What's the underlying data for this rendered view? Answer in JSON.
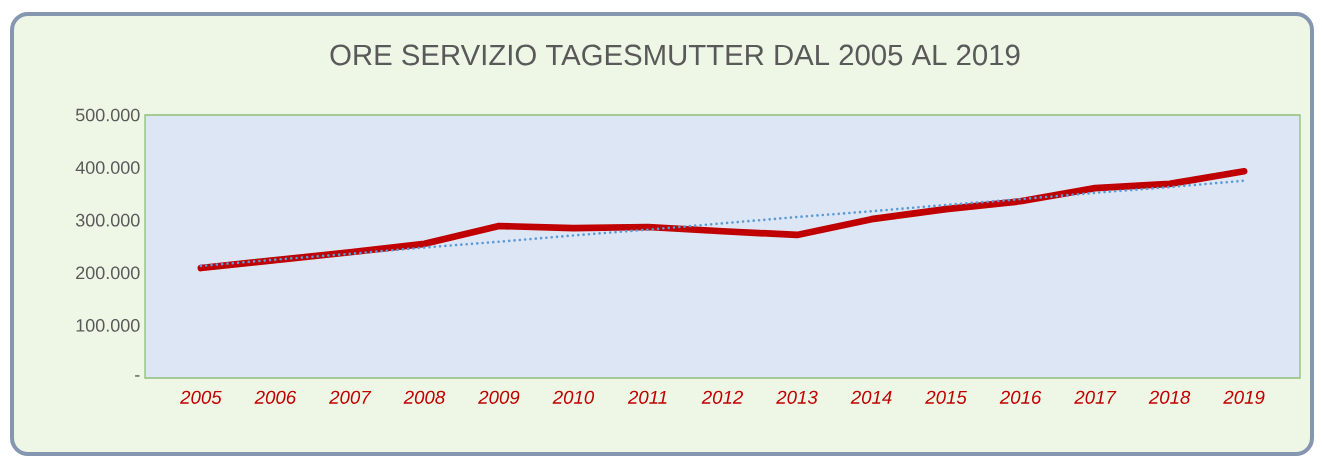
{
  "chart_data": {
    "type": "line",
    "title": "ORE SERVIZIO TAGESMUTTER DAL 2005 AL 2019",
    "categories": [
      "2005",
      "2006",
      "2007",
      "2008",
      "2009",
      "2010",
      "2011",
      "2012",
      "2013",
      "2014",
      "2015",
      "2016",
      "2017",
      "2018",
      "2019"
    ],
    "series": [
      {
        "color": "#c00000",
        "line_style": "solid",
        "values": [
          209000,
          224000,
          239000,
          255000,
          289000,
          285000,
          287000,
          279000,
          272000,
          302000,
          321000,
          336000,
          361000,
          369000,
          393000
        ]
      },
      {
        "type": "line",
        "color": "#5b9bd5",
        "line_style": "dotted",
        "values": [
          213000,
          225000,
          236000,
          248000,
          259000,
          271000,
          282000,
          294000,
          306000,
          317000,
          329000,
          340000,
          352000,
          363000,
          375000
        ]
      }
    ],
    "ylim": [
      0,
      500000
    ],
    "yticks": [
      {
        "value": 0,
        "label": "-"
      },
      {
        "value": 100000,
        "label": "100.000"
      },
      {
        "value": 200000,
        "label": "200.000"
      },
      {
        "value": 300000,
        "label": "300.000"
      },
      {
        "value": 400000,
        "label": "400.000"
      },
      {
        "value": 500000,
        "label": "500.000"
      }
    ],
    "grid": false,
    "legend": false,
    "marker": "none"
  }
}
